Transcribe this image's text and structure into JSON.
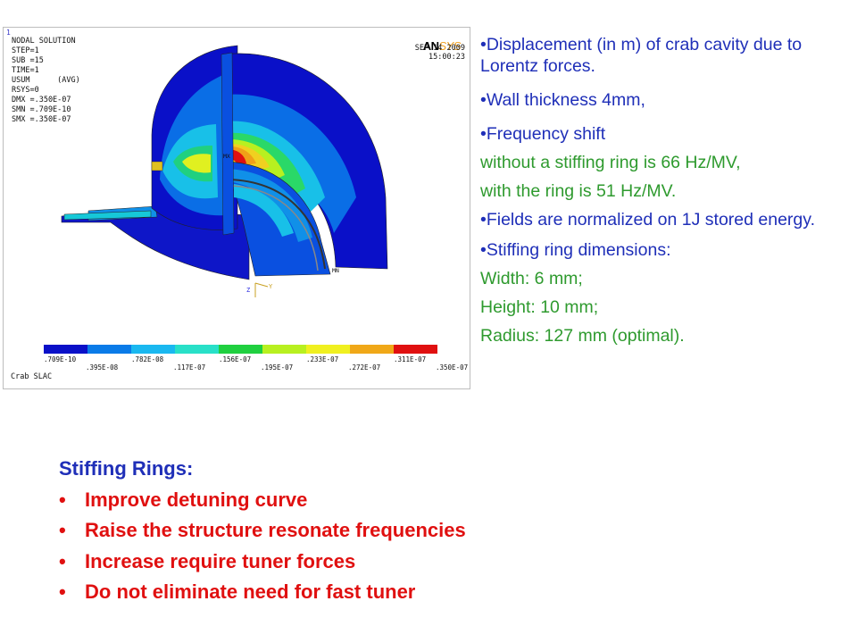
{
  "figure": {
    "index": "1",
    "nodal_solution": [
      "NODAL SOLUTION",
      "STEP=1",
      "SUB =15",
      "TIME=1",
      "USUM      (AVG)",
      "RSYS=0",
      "DMX =.350E-07",
      "SMN =.709E-10",
      "SMX =.350E-07"
    ],
    "logo_an": "AN",
    "logo_sys": "SYS",
    "date": "SEP 14 2009",
    "time": "15:00:23",
    "model_labels": {
      "mx": "MX",
      "mn": "MN"
    },
    "legend_colors": [
      "#0a10c8",
      "#0a7be8",
      "#1ab8f0",
      "#28e0c8",
      "#20d040",
      "#b8f020",
      "#f0f020",
      "#f0a818",
      "#e01010"
    ],
    "legend_ticks_top": [
      ".709E-10",
      ".782E-08",
      ".156E-07",
      ".233E-07",
      ".311E-07"
    ],
    "legend_ticks_bottom": [
      ".395E-08",
      ".117E-07",
      ".195E-07",
      ".272E-07",
      ".350E-07"
    ],
    "footer": "Crab SLAC"
  },
  "notes": [
    {
      "text": "•Displacement (in m) of crab cavity due to Lorentz forces.",
      "color": "blue"
    },
    {
      "text": "•Wall thickness 4mm,",
      "color": "blue"
    },
    {
      "text": "•Frequency shift",
      "color": "blue"
    },
    {
      "text": "without a stiffing ring is 66 Hz/MV,",
      "color": "green"
    },
    {
      "text": "with the ring is 51 Hz/MV.",
      "color": "green"
    },
    {
      "text": "•Fields are normalized on 1J stored energy.",
      "color": "blue"
    },
    {
      "text": "•Stiffing ring dimensions:",
      "color": "blue"
    },
    {
      "text": "Width: 6 mm;",
      "color": "green"
    },
    {
      "text": "Height: 10 mm;",
      "color": "green"
    },
    {
      "text": "Radius: 127 mm (optimal).",
      "color": "green"
    }
  ],
  "rings": {
    "title": "Stiffing Rings:",
    "bullet": "•",
    "items": [
      "Improve detuning curve",
      "Raise the structure resonate frequencies",
      "Increase require tuner forces",
      "Do not eliminate need for fast tuner"
    ]
  }
}
